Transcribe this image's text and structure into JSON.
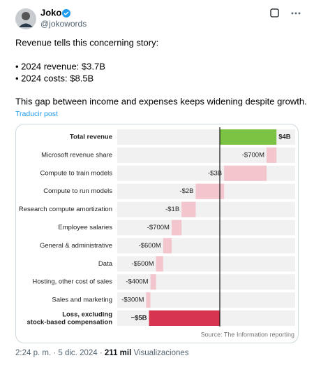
{
  "tweet": {
    "name": "Joko",
    "handle": "@jokowords",
    "text": [
      "Revenue tells this concerning story:",
      "• 2024 revenue: $3.7B",
      "• 2024 costs: $8.5B",
      "This gap between income and expenses keeps widening despite growth."
    ],
    "translate": "Traducir post",
    "footer": {
      "time": "2:24 p. m.",
      "separator": "·",
      "date": "5 dic. 2024",
      "views_count": "211 mil",
      "views_label": "Visualizaciones"
    }
  },
  "chart_data": {
    "type": "waterfall",
    "categories": [
      "Total revenue",
      "Microsoft revenue share",
      "Compute to train models",
      "Compute to run models",
      "Research compute amortization",
      "Employee salaries",
      "General & administrative",
      "Data",
      "Hosting, other cost of sales",
      "Sales and marketing",
      "Loss, excluding stock-based compensation"
    ],
    "values": [
      4,
      -0.7,
      -3,
      -2,
      -1,
      -0.7,
      -0.6,
      -0.5,
      -0.4,
      -0.3,
      -5
    ],
    "value_labels": [
      "$4B",
      "-$700M",
      "-$3B",
      "-$2B",
      "-$1B",
      "-$700M",
      "-$600M",
      "-$500M",
      "-$400M",
      "-$300M",
      "−$5B"
    ],
    "measure": [
      "total",
      "relative",
      "relative",
      "relative",
      "relative",
      "relative",
      "relative",
      "relative",
      "relative",
      "relative",
      "total"
    ],
    "colors": [
      "#7cc243",
      "#f2c6cc",
      "#f2c6cc",
      "#f2c6cc",
      "#f2c6cc",
      "#f2c6cc",
      "#f2c6cc",
      "#f2c6cc",
      "#f2c6cc",
      "#f2c6cc",
      "#d7354f"
    ],
    "source": "Source:  The Information reporting"
  }
}
